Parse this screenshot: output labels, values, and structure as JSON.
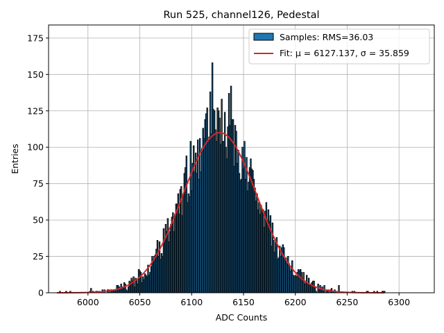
{
  "chart_data": {
    "type": "bar",
    "title": "Run 525, channel126, Pedestal",
    "xlabel": "ADC Counts",
    "ylabel": "Entries",
    "xlim": [
      5962,
      6334
    ],
    "ylim": [
      0,
      184
    ],
    "x_ticks": [
      6000,
      6050,
      6100,
      6150,
      6200,
      6250,
      6300
    ],
    "y_ticks": [
      0,
      25,
      50,
      75,
      100,
      125,
      150,
      175
    ],
    "grid": true,
    "legend_position": "top-right",
    "bar_color": "#1f77b4",
    "fit_color": "#d62728",
    "histogram": {
      "name": "Samples: RMS=36.03",
      "rms": 36.03,
      "bin_width": 1,
      "bins": [
        5970,
        6286
      ]
    },
    "fit": {
      "name": "Fit: μ = 6127.137, σ = 35.859",
      "mu": 6127.137,
      "sigma": 35.859,
      "peak": 110,
      "x_range": [
        5970,
        6286
      ]
    },
    "notable_bins": [
      {
        "x": 6003,
        "y": 3
      },
      {
        "x": 6095,
        "y": 94
      },
      {
        "x": 6099,
        "y": 104
      },
      {
        "x": 6111,
        "y": 113
      },
      {
        "x": 6114,
        "y": 123
      },
      {
        "x": 6115,
        "y": 127
      },
      {
        "x": 6118,
        "y": 138
      },
      {
        "x": 6120,
        "y": 158
      },
      {
        "x": 6126,
        "y": 125
      },
      {
        "x": 6129,
        "y": 133
      },
      {
        "x": 6132,
        "y": 124
      },
      {
        "x": 6136,
        "y": 137
      },
      {
        "x": 6138,
        "y": 142
      },
      {
        "x": 6142,
        "y": 115
      },
      {
        "x": 6145,
        "y": 98
      },
      {
        "x": 6150,
        "y": 85
      },
      {
        "x": 6155,
        "y": 76
      },
      {
        "x": 6160,
        "y": 78
      },
      {
        "x": 6165,
        "y": 62
      },
      {
        "x": 6169,
        "y": 57
      },
      {
        "x": 6178,
        "y": 48
      },
      {
        "x": 6185,
        "y": 32
      },
      {
        "x": 6190,
        "y": 23
      },
      {
        "x": 6195,
        "y": 15
      },
      {
        "x": 6201,
        "y": 11
      },
      {
        "x": 6210,
        "y": 7
      },
      {
        "x": 6242,
        "y": 5
      },
      {
        "x": 6286,
        "y": 1
      }
    ]
  }
}
